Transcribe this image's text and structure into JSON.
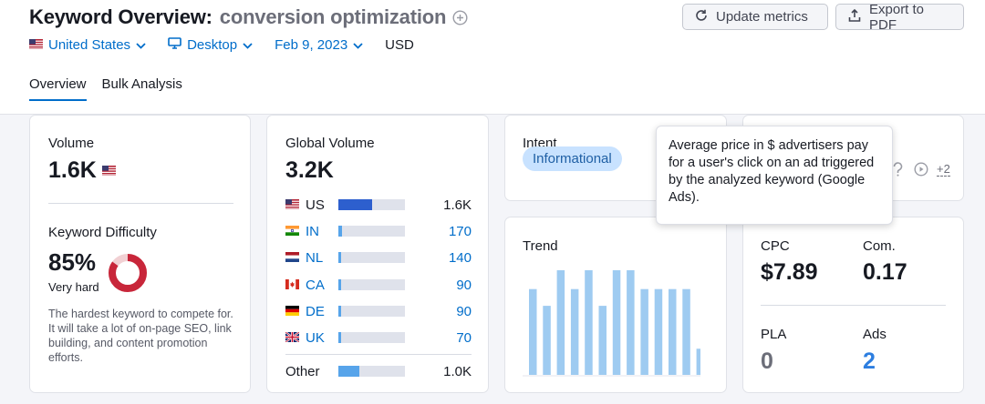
{
  "header": {
    "title_prefix": "Keyword Overview:",
    "keyword": "conversion optimization",
    "update_label": "Update metrics",
    "export_label": "Export to PDF"
  },
  "filters": {
    "country": "United States",
    "device": "Desktop",
    "date": "Feb 9, 2023",
    "currency": "USD"
  },
  "tabs": [
    "Overview",
    "Bulk Analysis"
  ],
  "volume": {
    "label": "Volume",
    "value": "1.6K"
  },
  "difficulty": {
    "label": "Keyword Difficulty",
    "value": "85%",
    "level": "Very hard",
    "percent": 85,
    "description": "The hardest keyword to compete for. It will take a lot of on-page SEO, link building, and content promotion efforts."
  },
  "global_volume": {
    "label": "Global Volume",
    "value": "3.2K",
    "rows": [
      {
        "code": "US",
        "value": "1.6K",
        "share": 0.5
      },
      {
        "code": "IN",
        "value": "170",
        "share": 0.05
      },
      {
        "code": "NL",
        "value": "140",
        "share": 0.04
      },
      {
        "code": "CA",
        "value": "90",
        "share": 0.03
      },
      {
        "code": "DE",
        "value": "90",
        "share": 0.03
      },
      {
        "code": "UK",
        "value": "70",
        "share": 0.02
      }
    ],
    "other": {
      "label": "Other",
      "value": "1.0K",
      "share": 0.32
    }
  },
  "intent": {
    "label": "Intent",
    "value": "Informational"
  },
  "serp": {
    "more": "+2"
  },
  "trend": {
    "label": "Trend",
    "values": [
      0.82,
      0.66,
      1.0,
      0.82,
      1.0,
      0.66,
      1.0,
      1.0,
      0.82,
      0.82,
      0.82,
      0.82,
      0.25
    ]
  },
  "cpc": {
    "label": "CPC",
    "value": "$7.89"
  },
  "competition": {
    "label": "Com.",
    "value": "0.17"
  },
  "pla": {
    "label": "PLA",
    "value": "0"
  },
  "ads": {
    "label": "Ads",
    "value": "2"
  },
  "tooltip": {
    "text": "Average price in $ advertisers pay for a user's click on an ad triggered by the analyzed keyword (Google Ads)."
  },
  "colors": {
    "accent": "#006dca",
    "difficulty": "#c8263a",
    "bar_primary": "#2d5fce",
    "bar_light": "#57a4ea",
    "trend_bar": "#9ecbf1"
  }
}
